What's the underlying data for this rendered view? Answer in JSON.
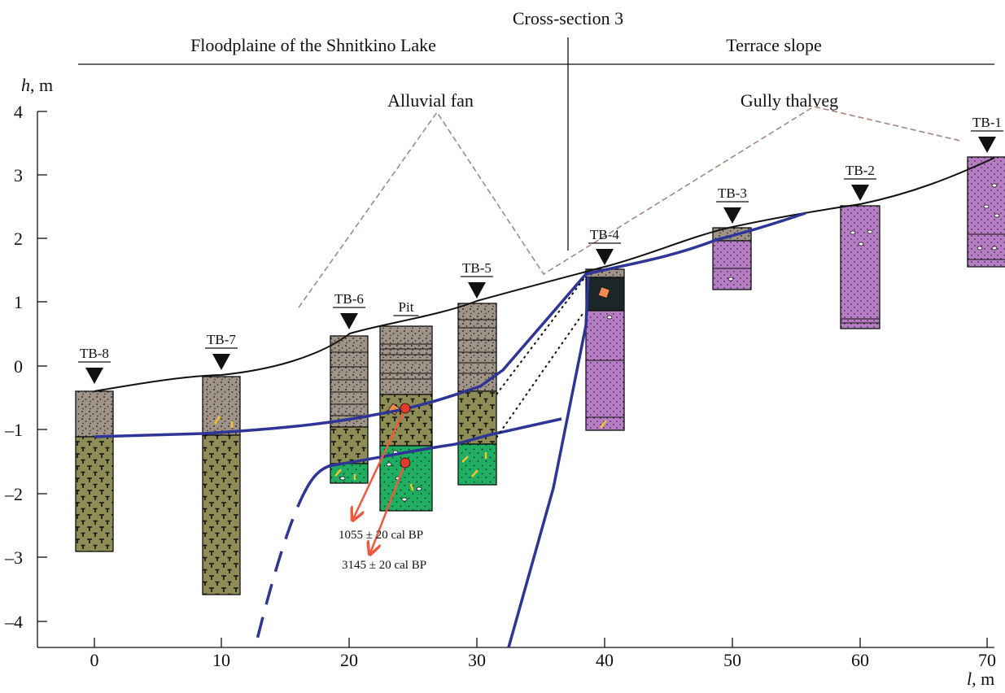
{
  "header": {
    "cross_section": "Cross-section 3",
    "left_zone": "Floodplaine of the Shnitkino Lake",
    "right_zone": "Terrace slope"
  },
  "axes": {
    "y_label_var": "h",
    "y_label_unit": ", m",
    "x_label_var": "l",
    "x_label_unit": ", m",
    "y_ticks": [
      "4",
      "3",
      "2",
      "1",
      "0",
      "–1",
      "–2",
      "–3",
      "–4"
    ],
    "x_ticks": [
      "0",
      "10",
      "20",
      "30",
      "40",
      "50",
      "60",
      "70"
    ]
  },
  "annotations": {
    "alluvial_fan": "Alluvial fan",
    "gully_thalveg": "Gully thalveg",
    "date1": "1055 ± 20 cal BP",
    "date2": "3145 ± 20 cal BP"
  },
  "boreholes": [
    "TB-8",
    "TB-7",
    "TB-6",
    "Pit",
    "TB-5",
    "TB-4",
    "TB-3",
    "TB-2",
    "TB-1"
  ],
  "colors": {
    "loam_gray": "#a09488",
    "olive": "#8d8d55",
    "green": "#1fae62",
    "pink": "#b57ec2",
    "dark": "#1b2629",
    "blue_line": "#2f3597",
    "date_arrow": "#ef5a3c",
    "dash_brown": "#a48a80"
  }
}
